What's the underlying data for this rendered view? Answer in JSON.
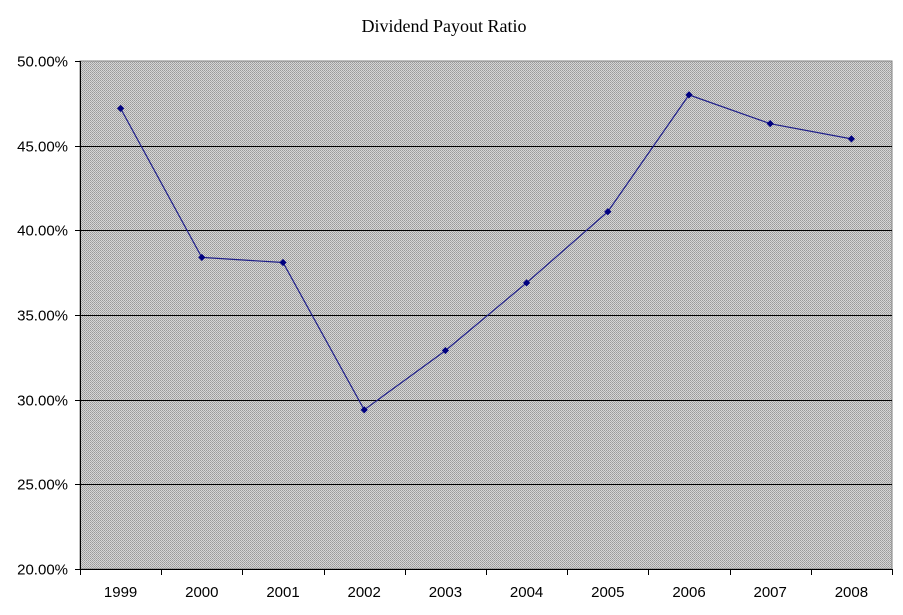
{
  "chart_data": {
    "type": "line",
    "title": "Dividend Payout Ratio",
    "xlabel": "",
    "ylabel": "",
    "categories": [
      "1999",
      "2000",
      "2001",
      "2002",
      "2003",
      "2004",
      "2005",
      "2006",
      "2007",
      "2008"
    ],
    "series": [
      {
        "values": [
          47.2,
          38.4,
          38.1,
          29.4,
          32.9,
          36.9,
          41.1,
          48.0,
          46.3,
          45.4
        ]
      }
    ],
    "ylim": [
      20,
      50
    ],
    "yticks": [
      20,
      25,
      30,
      35,
      40,
      45,
      50
    ],
    "ytick_labels": [
      "20.00%",
      "25.00%",
      "30.00%",
      "35.00%",
      "40.00%",
      "45.00%",
      "50.00%"
    ],
    "grid": "horizontal",
    "legend": "none",
    "colors": {
      "line": "#1f1f8a",
      "marker": "#000080",
      "plot_background": "#c0c0c0",
      "gridline": "#000000"
    }
  }
}
